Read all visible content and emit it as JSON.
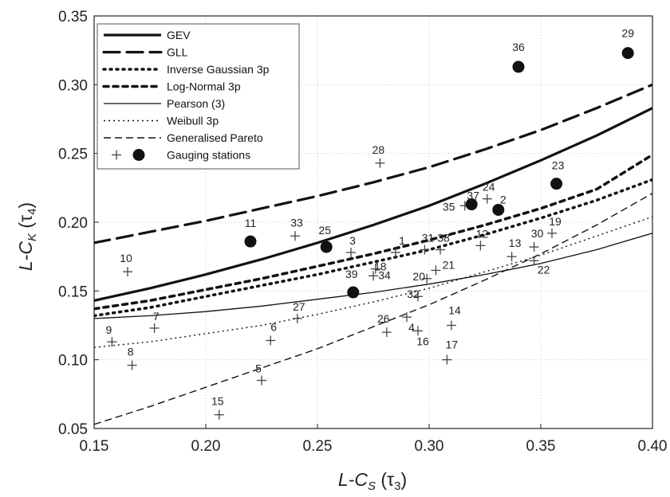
{
  "chart_data": {
    "type": "scatter",
    "xlabel": {
      "main": "L-C",
      "sub": "S",
      "rest": " (τ",
      "idx": "3",
      "close": ")"
    },
    "ylabel": {
      "main": "L-C",
      "sub": "K",
      "rest": " (τ",
      "idx": "4",
      "close": ")"
    },
    "xlim": [
      0.15,
      0.4
    ],
    "ylim": [
      0.05,
      0.35
    ],
    "xticks": [
      "0.15",
      "0.20",
      "0.25",
      "0.30",
      "0.35",
      "0.40"
    ],
    "yticks": [
      "0.05",
      "0.10",
      "0.15",
      "0.20",
      "0.25",
      "0.30",
      "0.35"
    ],
    "grid": "dotted",
    "legend_position": "top-left",
    "series": [
      {
        "name": "GEV",
        "dash": "",
        "width": 3.2,
        "x": [
          0.15,
          0.175,
          0.2,
          0.225,
          0.25,
          0.275,
          0.3,
          0.325,
          0.35,
          0.375,
          0.4
        ],
        "y": [
          0.143,
          0.152,
          0.162,
          0.173,
          0.185,
          0.198,
          0.212,
          0.228,
          0.245,
          0.263,
          0.283
        ]
      },
      {
        "name": "GLL",
        "dash": "20 9",
        "width": 3.2,
        "x": [
          0.15,
          0.175,
          0.2,
          0.225,
          0.25,
          0.275,
          0.3,
          0.325,
          0.35,
          0.375,
          0.4
        ],
        "y": [
          0.185,
          0.193,
          0.201,
          0.21,
          0.219,
          0.229,
          0.24,
          0.253,
          0.267,
          0.283,
          0.3
        ]
      },
      {
        "name": "Inverse Gaussian 3p",
        "dash": "2 6",
        "width": 3.5,
        "x": [
          0.15,
          0.175,
          0.2,
          0.225,
          0.25,
          0.275,
          0.3,
          0.325,
          0.35,
          0.375,
          0.4
        ],
        "y": [
          0.132,
          0.138,
          0.146,
          0.154,
          0.162,
          0.171,
          0.18,
          0.191,
          0.203,
          0.216,
          0.231
        ]
      },
      {
        "name": "Log-Normal 3p",
        "dash": "6 6",
        "width": 3.5,
        "x": [
          0.15,
          0.175,
          0.2,
          0.225,
          0.25,
          0.275,
          0.3,
          0.325,
          0.35,
          0.375,
          0.4
        ],
        "y": [
          0.137,
          0.143,
          0.151,
          0.159,
          0.168,
          0.177,
          0.187,
          0.198,
          0.21,
          0.224,
          0.249
        ]
      },
      {
        "name": "Pearson (3)",
        "dash": "",
        "width": 1.3,
        "x": [
          0.15,
          0.175,
          0.2,
          0.225,
          0.25,
          0.275,
          0.3,
          0.325,
          0.35,
          0.375,
          0.4
        ],
        "y": [
          0.13,
          0.132,
          0.135,
          0.139,
          0.144,
          0.149,
          0.155,
          0.162,
          0.17,
          0.18,
          0.192
        ]
      },
      {
        "name": "Weibull 3p",
        "dash": "2 4",
        "width": 1.4,
        "x": [
          0.15,
          0.175,
          0.2,
          0.225,
          0.25,
          0.275,
          0.3,
          0.325,
          0.35,
          0.375,
          0.4
        ],
        "y": [
          0.109,
          0.113,
          0.119,
          0.125,
          0.133,
          0.142,
          0.152,
          0.164,
          0.176,
          0.19,
          0.204
        ]
      },
      {
        "name": "Generalised Pareto",
        "dash": "9 5",
        "width": 1.4,
        "x": [
          0.15,
          0.175,
          0.2,
          0.225,
          0.25,
          0.275,
          0.3,
          0.325,
          0.35,
          0.375,
          0.4
        ],
        "y": [
          0.053,
          0.066,
          0.08,
          0.094,
          0.108,
          0.124,
          0.14,
          0.158,
          0.177,
          0.198,
          0.221
        ]
      }
    ],
    "stations_legend": "Gauging stations",
    "stations": [
      {
        "id": "1",
        "x": 0.285,
        "y": 0.178,
        "marker": "plus"
      },
      {
        "id": "2",
        "x": 0.331,
        "y": 0.209,
        "marker": "dot"
      },
      {
        "id": "3",
        "x": 0.265,
        "y": 0.178,
        "marker": "plus"
      },
      {
        "id": "4",
        "x": 0.29,
        "y": 0.131,
        "marker": "plus"
      },
      {
        "id": "5",
        "x": 0.225,
        "y": 0.085,
        "marker": "plus"
      },
      {
        "id": "6",
        "x": 0.229,
        "y": 0.114,
        "marker": "plus"
      },
      {
        "id": "7",
        "x": 0.177,
        "y": 0.123,
        "marker": "plus"
      },
      {
        "id": "8",
        "x": 0.167,
        "y": 0.096,
        "marker": "plus"
      },
      {
        "id": "9",
        "x": 0.158,
        "y": 0.113,
        "marker": "plus"
      },
      {
        "id": "10",
        "x": 0.165,
        "y": 0.164,
        "marker": "plus"
      },
      {
        "id": "11",
        "x": 0.22,
        "y": 0.186,
        "marker": "dot"
      },
      {
        "id": "12",
        "x": 0.323,
        "y": 0.183,
        "marker": "plus"
      },
      {
        "id": "13",
        "x": 0.337,
        "y": 0.175,
        "marker": "plus"
      },
      {
        "id": "14",
        "x": 0.31,
        "y": 0.125,
        "marker": "plus"
      },
      {
        "id": "15",
        "x": 0.206,
        "y": 0.06,
        "marker": "plus"
      },
      {
        "id": "16",
        "x": 0.295,
        "y": 0.121,
        "marker": "plus"
      },
      {
        "id": "17",
        "x": 0.308,
        "y": 0.1,
        "marker": "plus"
      },
      {
        "id": "18",
        "x": 0.276,
        "y": 0.166,
        "marker": "plus"
      },
      {
        "id": "19",
        "x": 0.355,
        "y": 0.192,
        "marker": "plus"
      },
      {
        "id": "20",
        "x": 0.299,
        "y": 0.159,
        "marker": "plus"
      },
      {
        "id": "21",
        "x": 0.303,
        "y": 0.165,
        "marker": "plus"
      },
      {
        "id": "22",
        "x": 0.347,
        "y": 0.172,
        "marker": "plus"
      },
      {
        "id": "23",
        "x": 0.357,
        "y": 0.228,
        "marker": "dot"
      },
      {
        "id": "24",
        "x": 0.326,
        "y": 0.217,
        "marker": "plus"
      },
      {
        "id": "25",
        "x": 0.254,
        "y": 0.182,
        "marker": "dot"
      },
      {
        "id": "26",
        "x": 0.281,
        "y": 0.12,
        "marker": "plus"
      },
      {
        "id": "27",
        "x": 0.241,
        "y": 0.13,
        "marker": "plus"
      },
      {
        "id": "28",
        "x": 0.278,
        "y": 0.243,
        "marker": "plus"
      },
      {
        "id": "29",
        "x": 0.389,
        "y": 0.323,
        "marker": "dot"
      },
      {
        "id": "30",
        "x": 0.347,
        "y": 0.182,
        "marker": "plus"
      },
      {
        "id": "31",
        "x": 0.298,
        "y": 0.18,
        "marker": "plus"
      },
      {
        "id": "32",
        "x": 0.295,
        "y": 0.146,
        "marker": "plus"
      },
      {
        "id": "33",
        "x": 0.24,
        "y": 0.19,
        "marker": "plus"
      },
      {
        "id": "34",
        "x": 0.275,
        "y": 0.161,
        "marker": "plus"
      },
      {
        "id": "35",
        "x": 0.316,
        "y": 0.212,
        "marker": "plus"
      },
      {
        "id": "36",
        "x": 0.34,
        "y": 0.313,
        "marker": "dot"
      },
      {
        "id": "37",
        "x": 0.319,
        "y": 0.213,
        "marker": "dot"
      },
      {
        "id": "38",
        "x": 0.305,
        "y": 0.18,
        "marker": "plus"
      },
      {
        "id": "39",
        "x": 0.266,
        "y": 0.149,
        "marker": "dot"
      }
    ]
  }
}
